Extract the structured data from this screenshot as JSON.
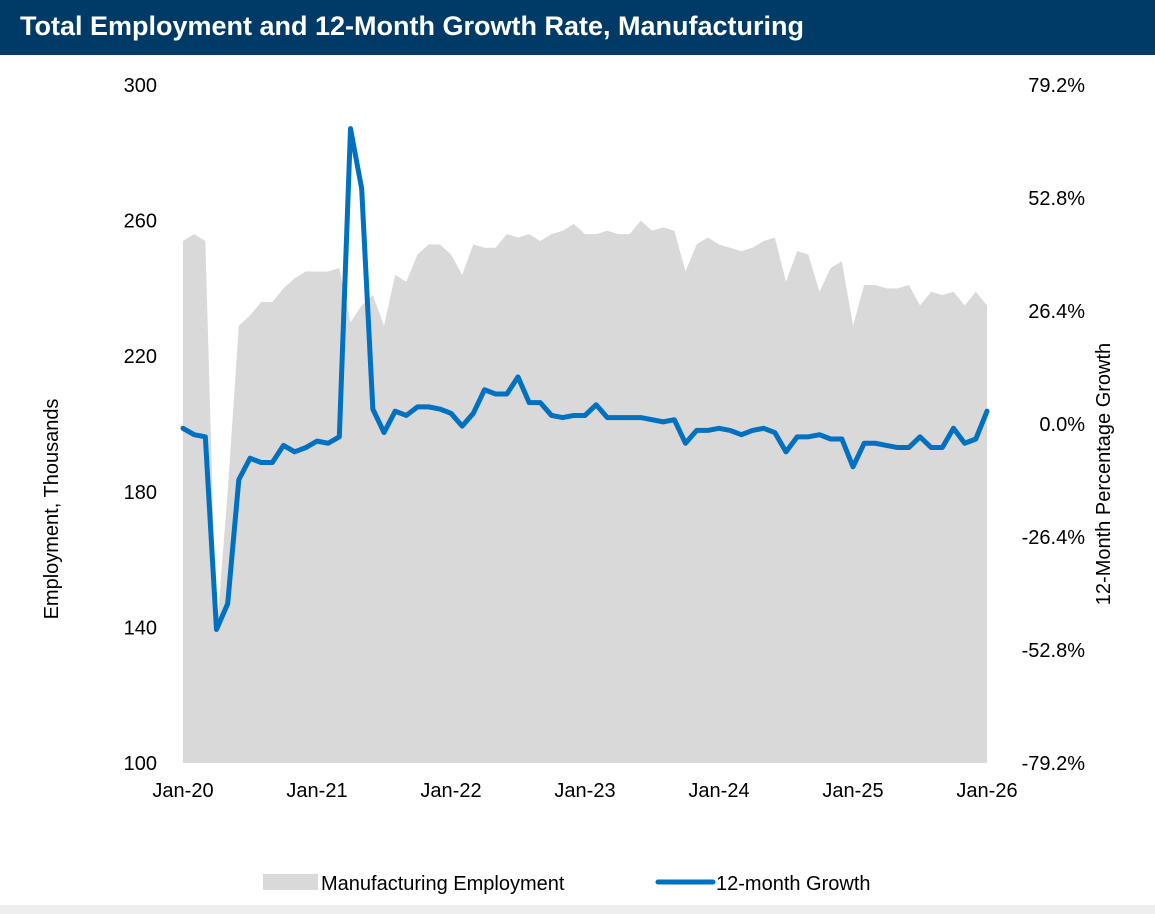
{
  "title": "Total Employment and 12-Month Growth Rate, Manufacturing",
  "colors": {
    "title_bar": "#003a66",
    "area": "#d9d9d9",
    "line": "#0070c0"
  },
  "chart_data": {
    "type": "area+line",
    "title": "Total Employment and 12-Month Growth Rate, Manufacturing",
    "x_start": "2020-01",
    "x_ticks": [
      "Jan-20",
      "Jan-21",
      "Jan-22",
      "Jan-23",
      "Jan-24",
      "Jan-25",
      "Jan-26"
    ],
    "y_left": {
      "label": "Employment, Thousands",
      "min": 100,
      "max": 300,
      "ticks": [
        "300",
        "260",
        "220",
        "180",
        "140",
        "100"
      ]
    },
    "y_right": {
      "label": "12-Month Percentage Growth",
      "min": -79.2,
      "max": 79.2,
      "ticks": [
        "79.2%",
        "52.8%",
        "26.4%",
        "0.0%",
        "-26.4%",
        "-52.8%",
        "-79.2%"
      ]
    },
    "legend_position": "bottom",
    "series": [
      {
        "name": "Manufacturing Employment",
        "kind": "area",
        "axis": "left",
        "values": [
          254,
          256,
          254,
          138,
          180,
          229,
          232,
          236,
          236,
          240,
          243,
          245,
          245,
          245,
          246,
          230,
          235,
          238,
          229,
          244,
          242,
          250,
          253,
          253,
          250,
          244,
          253,
          252,
          252,
          256,
          255,
          256,
          254,
          256,
          257,
          259,
          256,
          256,
          257,
          256,
          256,
          260,
          257,
          258,
          257,
          245,
          253,
          255,
          253,
          252,
          251,
          252,
          254,
          255,
          242,
          251,
          250,
          239,
          246,
          248,
          229,
          241,
          241,
          240,
          240,
          241,
          235,
          239,
          238,
          239,
          235,
          239,
          235
        ]
      },
      {
        "name": "12-month Growth",
        "kind": "line",
        "axis": "right",
        "values": [
          -1.0,
          -2.5,
          -3.0,
          -48.0,
          -42.0,
          -13.0,
          -8.0,
          -9.0,
          -9.0,
          -5.0,
          -6.5,
          -5.5,
          -4.0,
          -4.5,
          -3.0,
          69.0,
          55.0,
          3.5,
          -2.0,
          3.0,
          2.0,
          4.0,
          4.0,
          3.5,
          2.5,
          -0.5,
          2.5,
          8.0,
          7.0,
          7.0,
          11.0,
          5.0,
          5.0,
          2.0,
          1.5,
          2.0,
          2.0,
          4.5,
          1.5,
          1.5,
          1.5,
          1.5,
          1.0,
          0.5,
          1.0,
          -4.5,
          -1.5,
          -1.5,
          -1.0,
          -1.5,
          -2.5,
          -1.5,
          -1.0,
          -2.0,
          -6.5,
          -3.0,
          -3.0,
          -2.5,
          -3.5,
          -3.5,
          -10.0,
          -4.5,
          -4.5,
          -5.0,
          -5.5,
          -5.5,
          -3.0,
          -5.5,
          -5.5,
          -1.0,
          -4.5,
          -3.5,
          3.0
        ]
      }
    ]
  }
}
